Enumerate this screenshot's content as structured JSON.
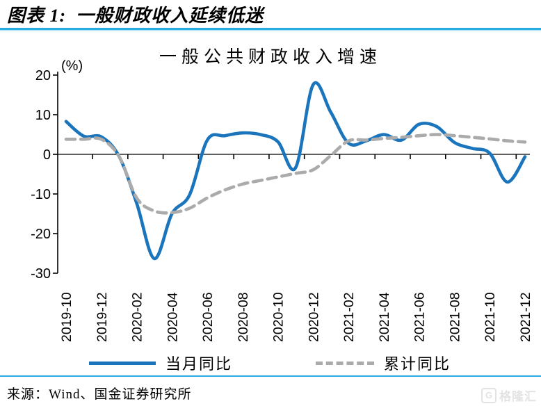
{
  "header": {
    "figure_label": "图表 1:",
    "figure_title": "一般财政收入延续低迷"
  },
  "source": {
    "label": "来源：",
    "text": "Wind、国金证券研究所"
  },
  "watermark": {
    "icon": "G",
    "text": "格隆汇"
  },
  "colors": {
    "accent_divider": "#29ABE2",
    "series_monthly": "#1B75BC",
    "series_cumulative": "#ABABAB",
    "axis": "#000000"
  },
  "chart_data": {
    "type": "line",
    "title": "一般公共财政收入增速",
    "unit_label": "(%)",
    "ylim": [
      -30,
      20
    ],
    "yticks": [
      20,
      10,
      0,
      -10,
      -20,
      -30
    ],
    "grid": false,
    "legend_position": "bottom",
    "x": [
      "2019-10",
      "2019-11",
      "2019-12",
      "2020-01",
      "2020-02",
      "2020-03",
      "2020-04",
      "2020-05",
      "2020-06",
      "2020-07",
      "2020-08",
      "2020-09",
      "2020-10",
      "2020-11",
      "2020-12",
      "2021-01",
      "2021-02",
      "2021-03",
      "2021-04",
      "2021-05",
      "2021-06",
      "2021-07",
      "2021-08",
      "2021-09",
      "2021-10",
      "2021-11",
      "2021-12"
    ],
    "x_tick_labels": [
      "2019-10",
      "2019-12",
      "2020-02",
      "2020-04",
      "2020-06",
      "2020-08",
      "2020-10",
      "2020-12",
      "2021-02",
      "2021-04",
      "2021-06",
      "2021-08",
      "2021-10",
      "2021-12"
    ],
    "series": [
      {
        "name": "当月同比",
        "style": "solid",
        "color": "#1B75BC",
        "values": [
          8.3,
          4.6,
          4.4,
          -0.5,
          -12.3,
          -26.3,
          -15.0,
          -10.2,
          3.6,
          4.7,
          5.4,
          5.0,
          3.2,
          -3.4,
          17.6,
          10.6,
          2.8,
          3.4,
          5.0,
          3.6,
          7.6,
          7.0,
          3.0,
          1.5,
          0.3,
          -7.0,
          -0.6
        ]
      },
      {
        "name": "累计同比",
        "style": "dashed",
        "color": "#ABABAB",
        "values": [
          3.8,
          3.8,
          3.8,
          -0.5,
          -11.0,
          -14.3,
          -14.7,
          -13.6,
          -11.0,
          -9.0,
          -7.5,
          -6.6,
          -5.7,
          -4.8,
          -3.9,
          -0.3,
          3.4,
          3.6,
          4.0,
          4.3,
          4.7,
          5.0,
          4.7,
          4.3,
          3.9,
          3.4,
          3.1
        ]
      }
    ]
  }
}
